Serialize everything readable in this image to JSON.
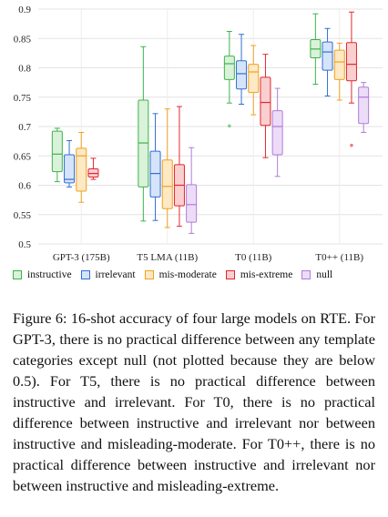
{
  "chart_data": {
    "type": "box",
    "categories": [
      "GPT-3 (175B)",
      "T5 LMA (11B)",
      "T0 (11B)",
      "T0++ (11B)"
    ],
    "ylim": [
      0.5,
      0.9
    ],
    "yticks": [
      "0.5",
      "0.55",
      "0.6",
      "0.65",
      "0.7",
      "0.75",
      "0.8",
      "0.85",
      "0.9"
    ],
    "grid": true,
    "legend_position": "bottom",
    "series": [
      {
        "name": "instructive",
        "color": "#3cb44b",
        "fill": "#d9f2d9",
        "boxes": [
          {
            "min": 0.606,
            "q1": 0.623,
            "median": 0.653,
            "q3": 0.692,
            "max": 0.697,
            "outliers": []
          },
          {
            "min": 0.539,
            "q1": 0.597,
            "median": 0.672,
            "q3": 0.745,
            "max": 0.836,
            "outliers": []
          },
          {
            "min": 0.74,
            "q1": 0.78,
            "median": 0.807,
            "q3": 0.82,
            "max": 0.862,
            "outliers": [
              0.701
            ]
          },
          {
            "min": 0.772,
            "q1": 0.817,
            "median": 0.832,
            "q3": 0.848,
            "max": 0.892,
            "outliers": []
          }
        ]
      },
      {
        "name": "irrelevant",
        "color": "#2f6fd6",
        "fill": "#d6e4fb",
        "boxes": [
          {
            "min": 0.597,
            "q1": 0.604,
            "median": 0.61,
            "q3": 0.652,
            "max": 0.676,
            "outliers": []
          },
          {
            "min": 0.54,
            "q1": 0.58,
            "median": 0.62,
            "q3": 0.658,
            "max": 0.722,
            "outliers": []
          },
          {
            "min": 0.738,
            "q1": 0.764,
            "median": 0.79,
            "q3": 0.812,
            "max": 0.857,
            "outliers": []
          },
          {
            "min": 0.752,
            "q1": 0.796,
            "median": 0.827,
            "q3": 0.844,
            "max": 0.867,
            "outliers": []
          }
        ]
      },
      {
        "name": "mis-moderate",
        "color": "#f0a020",
        "fill": "#fde9c3",
        "boxes": [
          {
            "min": 0.571,
            "q1": 0.59,
            "median": 0.65,
            "q3": 0.663,
            "max": 0.69,
            "outliers": []
          },
          {
            "min": 0.528,
            "q1": 0.56,
            "median": 0.598,
            "q3": 0.643,
            "max": 0.73,
            "outliers": []
          },
          {
            "min": 0.72,
            "q1": 0.758,
            "median": 0.793,
            "q3": 0.806,
            "max": 0.838,
            "outliers": []
          },
          {
            "min": 0.745,
            "q1": 0.78,
            "median": 0.81,
            "q3": 0.83,
            "max": 0.842,
            "outliers": []
          }
        ]
      },
      {
        "name": "mis-extreme",
        "color": "#e3262e",
        "fill": "#f9cfd0",
        "boxes": [
          {
            "min": 0.61,
            "q1": 0.614,
            "median": 0.62,
            "q3": 0.628,
            "max": 0.646,
            "outliers": []
          },
          {
            "min": 0.53,
            "q1": 0.565,
            "median": 0.6,
            "q3": 0.635,
            "max": 0.734,
            "outliers": []
          },
          {
            "min": 0.647,
            "q1": 0.702,
            "median": 0.741,
            "q3": 0.784,
            "max": 0.823,
            "outliers": []
          },
          {
            "min": 0.74,
            "q1": 0.778,
            "median": 0.806,
            "q3": 0.843,
            "max": 0.895,
            "outliers": [
              0.668
            ]
          }
        ]
      },
      {
        "name": "null",
        "color": "#b07cd8",
        "fill": "#ecdcf7",
        "boxes": [
          null,
          {
            "min": 0.518,
            "q1": 0.537,
            "median": 0.567,
            "q3": 0.601,
            "max": 0.664,
            "outliers": []
          },
          {
            "min": 0.615,
            "q1": 0.652,
            "median": 0.7,
            "q3": 0.727,
            "max": 0.765,
            "outliers": []
          },
          {
            "min": 0.69,
            "q1": 0.705,
            "median": 0.75,
            "q3": 0.767,
            "max": 0.775,
            "outliers": []
          }
        ]
      }
    ]
  },
  "caption": "Figure 6: 16-shot accuracy of four large models on RTE. For GPT-3, there is no practical difference between any template categories except null (not plotted because they are below 0.5). For T5, there is no practical difference between instructive and irrelevant. For T0, there is no practical difference between instructive and irrelevant nor between instructive and misleading-moderate. For T0++, there is no practical difference between instructive and irrelevant nor between instructive and misleading-extreme."
}
